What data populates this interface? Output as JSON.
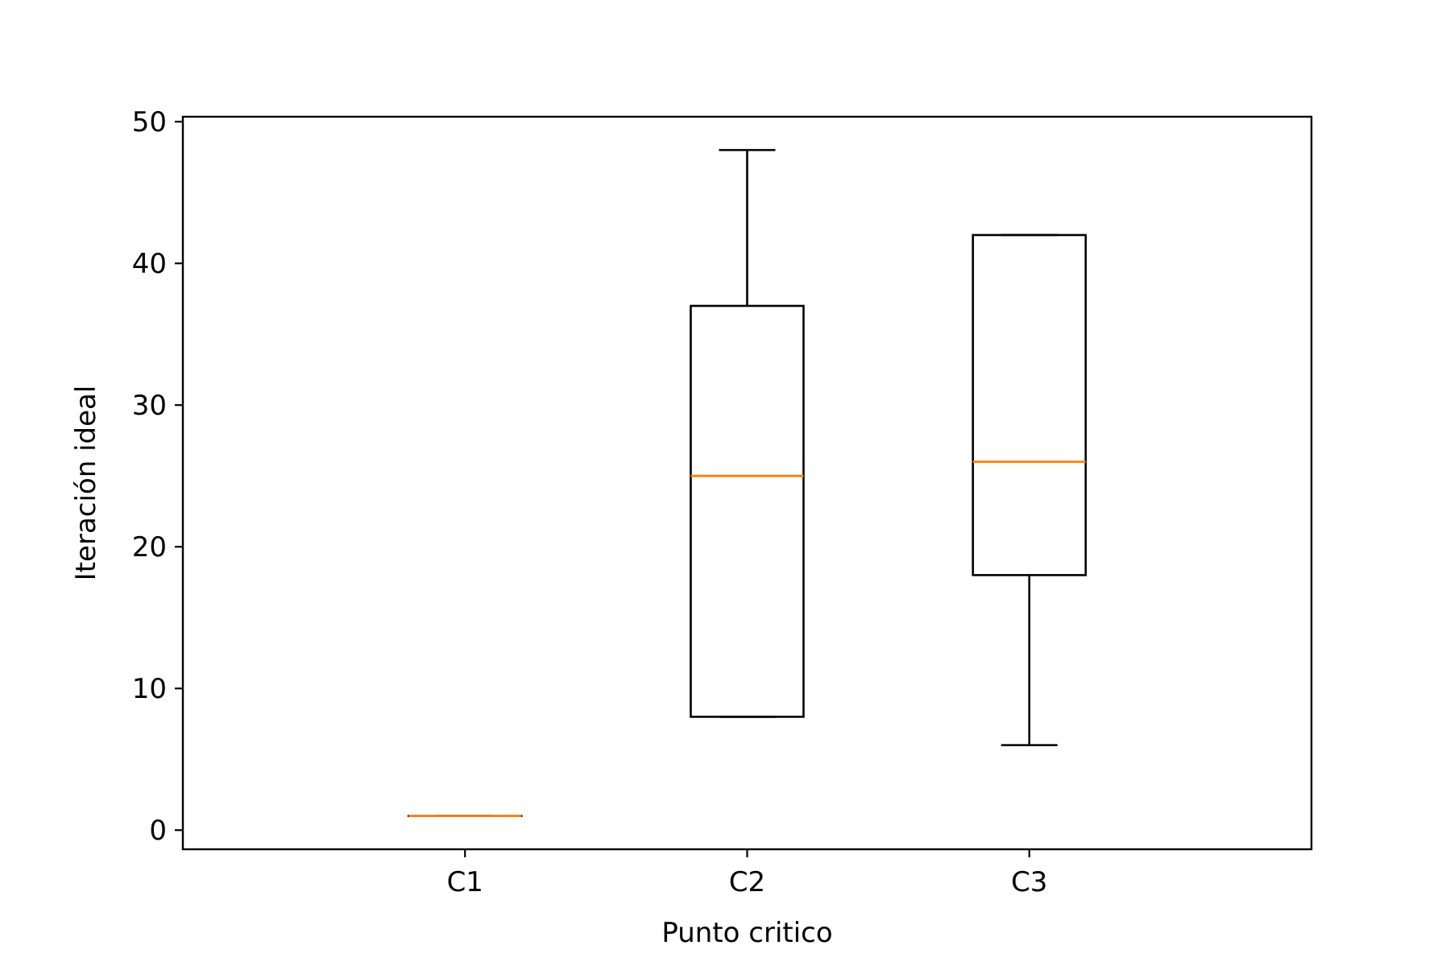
{
  "chart_data": {
    "type": "boxplot",
    "title": "",
    "xlabel": "Punto critico",
    "ylabel": "Iteración ideal",
    "categories": [
      "C1",
      "C2",
      "C3"
    ],
    "boxes": [
      {
        "category": "C1",
        "whisker_low": 1,
        "q1": 1,
        "median": 1,
        "q3": 1,
        "whisker_high": 1
      },
      {
        "category": "C2",
        "whisker_low": 8,
        "q1": 8,
        "median": 25,
        "q3": 37,
        "whisker_high": 48
      },
      {
        "category": "C3",
        "whisker_low": 6,
        "q1": 18,
        "median": 26,
        "q3": 42,
        "whisker_high": 42
      }
    ],
    "ylim": [
      -1.35,
      50.35
    ],
    "yticks": [
      0,
      10,
      20,
      30,
      40,
      50
    ],
    "grid": false,
    "colors": {
      "box": "#000000",
      "median": "#ff7f0e"
    }
  }
}
